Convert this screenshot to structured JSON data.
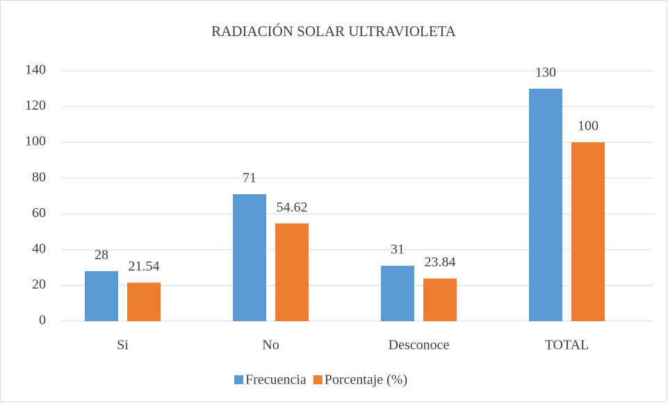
{
  "chart_data": {
    "type": "bar",
    "title": "RADIACIÓN SOLAR ULTRAVIOLETA",
    "categories": [
      "Si",
      "No",
      "Desconoce",
      "TOTAL"
    ],
    "series": [
      {
        "name": "Frecuencia",
        "color": "#5b9bd5",
        "values": [
          28,
          71,
          31,
          130
        ]
      },
      {
        "name": "Porcentaje (%)",
        "color": "#ed7d31",
        "values": [
          21.54,
          54.62,
          23.84,
          100
        ]
      }
    ],
    "ylim": [
      0,
      140
    ],
    "yticks": [
      0,
      20,
      40,
      60,
      80,
      100,
      120,
      140
    ],
    "grid": true,
    "legend": "bottom"
  }
}
